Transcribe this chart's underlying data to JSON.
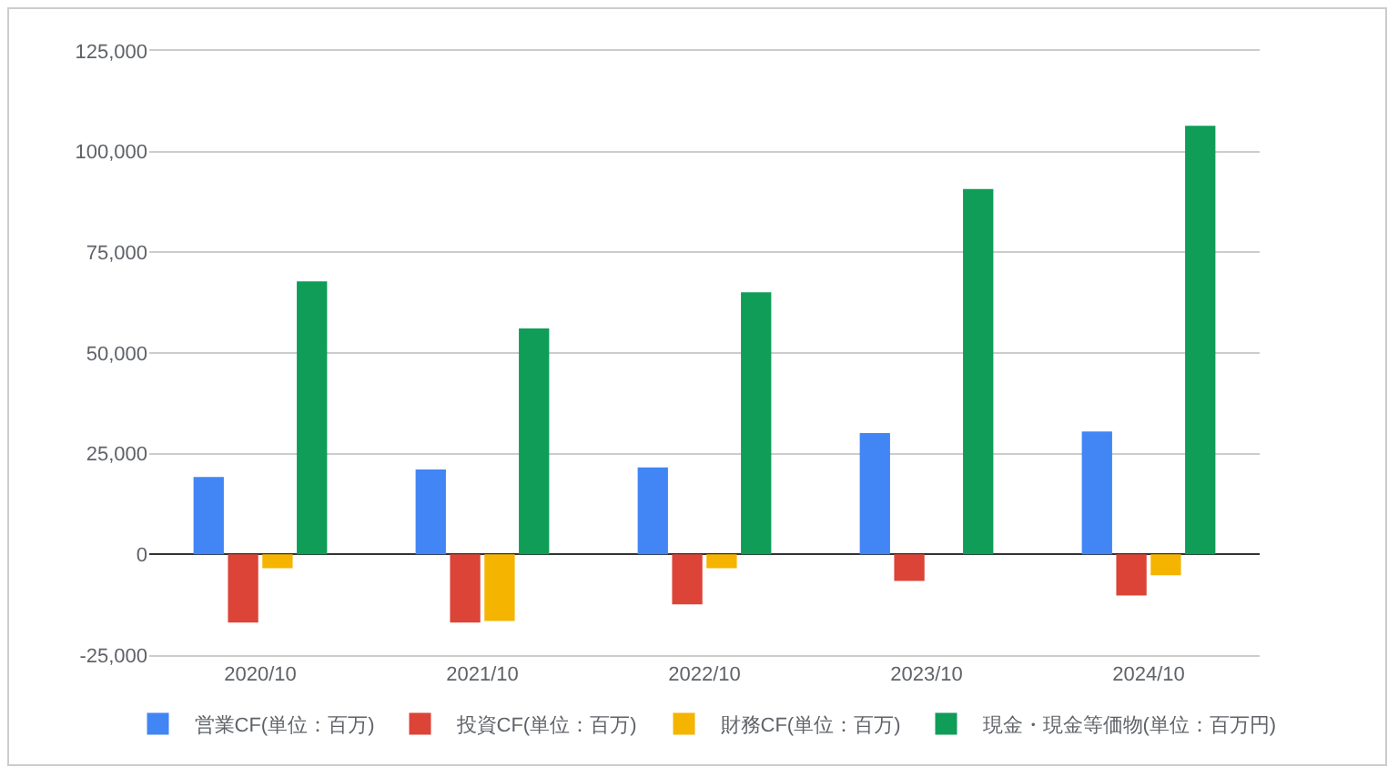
{
  "chart_data": {
    "type": "bar",
    "categories": [
      "2020/10",
      "2021/10",
      "2022/10",
      "2023/10",
      "2024/10"
    ],
    "series": [
      {
        "name": "営業CF(単位：百万)",
        "color": "#4285f4",
        "values": [
          19200,
          21100,
          21600,
          30100,
          30500
        ]
      },
      {
        "name": "投資CF(単位：百万)",
        "color": "#db4437",
        "values": [
          -16900,
          -16900,
          -12400,
          -6600,
          -10200
        ]
      },
      {
        "name": "財務CF(単位：百万)",
        "color": "#f4b400",
        "values": [
          -3400,
          -16500,
          -3400,
          null,
          -5200
        ]
      },
      {
        "name": "現金・現金等価物(単位：百万円)",
        "color": "#0f9d58",
        "values": [
          67800,
          56100,
          65100,
          90700,
          106400
        ]
      }
    ],
    "ylim": [
      -25000,
      125000
    ],
    "yticks": [
      {
        "value": -25000,
        "label": "-25,000"
      },
      0,
      {
        "value": 25000,
        "label": "25,000"
      },
      {
        "value": 50000,
        "label": "50,000"
      },
      {
        "value": 75000,
        "label": "75,000"
      },
      {
        "value": 100000,
        "label": "100,000"
      },
      {
        "value": 125000,
        "label": "125,000"
      }
    ],
    "grid": "y",
    "legend": "bottom"
  }
}
